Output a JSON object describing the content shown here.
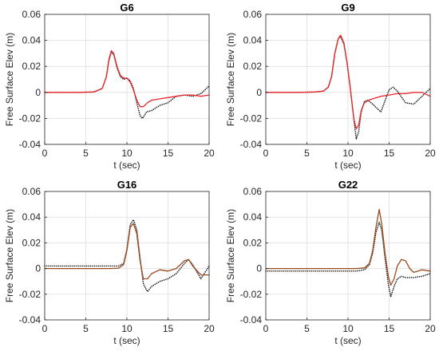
{
  "colors": {
    "model": "#e8262a",
    "model_g16_g22": "#9b4a1e",
    "measured": "#1a1a1a",
    "grid": "#e3e3e3",
    "axis": "#262626"
  },
  "chart_data": [
    {
      "type": "line",
      "title": "G6",
      "xlabel": "t (sec)",
      "ylabel": "Free Surface Elev (m)",
      "xlim": [
        0,
        20
      ],
      "ylim": [
        -0.04,
        0.06
      ],
      "xticks": [
        "0",
        "5",
        "10",
        "15",
        "20"
      ],
      "yticks": [
        "-0.04",
        "-0.02",
        "0",
        "0.02",
        "0.04",
        "0.06"
      ],
      "grid": true,
      "series": [
        {
          "style": "dotted",
          "color": "#1a1a1a",
          "x": [
            0,
            2,
            4,
            6,
            7,
            7.5,
            7.8,
            8.1,
            8.4,
            8.8,
            9.2,
            9.6,
            10,
            10.4,
            10.8,
            11.2,
            11.6,
            11.9,
            12.4,
            13,
            14,
            15,
            16,
            17,
            18,
            19,
            20
          ],
          "y": [
            0,
            0,
            0,
            0.0003,
            0.003,
            0.012,
            0.024,
            0.031,
            0.029,
            0.019,
            0.012,
            0.01,
            0.011,
            0.009,
            0.003,
            -0.008,
            -0.018,
            -0.02,
            -0.015,
            -0.014,
            -0.01,
            -0.008,
            -0.003,
            -0.002,
            -0.003,
            -0.001,
            0.005
          ]
        },
        {
          "style": "solid",
          "color": "#e8262a",
          "x": [
            0,
            2,
            4,
            6,
            7,
            7.5,
            7.8,
            8.1,
            8.4,
            8.8,
            9.2,
            9.6,
            10,
            10.4,
            10.8,
            11.2,
            11.6,
            12,
            12.5,
            13,
            14,
            15,
            16,
            17,
            18,
            19,
            20
          ],
          "y": [
            0,
            0,
            0,
            0.0003,
            0.003,
            0.012,
            0.025,
            0.032,
            0.03,
            0.02,
            0.013,
            0.011,
            0.011,
            0.008,
            0.002,
            -0.006,
            -0.011,
            -0.011,
            -0.008,
            -0.006,
            -0.005,
            -0.004,
            -0.003,
            -0.002,
            -0.002,
            -0.003,
            -0.002
          ]
        }
      ]
    },
    {
      "type": "line",
      "title": "G9",
      "xlabel": "t (sec)",
      "ylabel": "Free Surface Elev (m)",
      "xlim": [
        0,
        20
      ],
      "ylim": [
        -0.04,
        0.06
      ],
      "xticks": [
        "0",
        "5",
        "10",
        "15",
        "20"
      ],
      "yticks": [
        "-0.04",
        "-0.02",
        "0",
        "0.02",
        "0.04",
        "0.06"
      ],
      "grid": true,
      "series": [
        {
          "style": "dotted",
          "color": "#1a1a1a",
          "x": [
            0,
            2,
            4,
            6,
            7,
            7.6,
            8,
            8.4,
            8.8,
            9.1,
            9.5,
            9.9,
            10.3,
            10.7,
            11,
            11.3,
            11.6,
            12,
            12.4,
            13,
            14,
            15,
            15.5,
            16,
            17,
            18,
            19,
            20
          ],
          "y": [
            0,
            0,
            0,
            0.0003,
            0.001,
            0.004,
            0.012,
            0.03,
            0.041,
            0.043,
            0.037,
            0.022,
            0.002,
            -0.02,
            -0.036,
            -0.03,
            -0.015,
            -0.007,
            -0.006,
            -0.009,
            -0.015,
            0.002,
            0.004,
            0.001,
            -0.008,
            -0.009,
            -0.003,
            0.003
          ]
        },
        {
          "style": "solid",
          "color": "#e8262a",
          "x": [
            0,
            2,
            4,
            6,
            7,
            7.6,
            8,
            8.4,
            8.8,
            9.1,
            9.5,
            9.9,
            10.3,
            10.7,
            11,
            11.3,
            11.6,
            12,
            12.5,
            13,
            14,
            15,
            16,
            17,
            18,
            19,
            20
          ],
          "y": [
            0,
            0,
            0,
            0.0003,
            0.001,
            0.004,
            0.012,
            0.03,
            0.041,
            0.044,
            0.038,
            0.022,
            0.002,
            -0.02,
            -0.028,
            -0.025,
            -0.014,
            -0.008,
            -0.006,
            -0.005,
            -0.003,
            -0.002,
            -0.001,
            -0.001,
            0,
            0,
            -0.003
          ]
        }
      ]
    },
    {
      "type": "line",
      "title": "G16",
      "xlabel": "t (sec)",
      "ylabel": "Free Surface Elev (m)",
      "xlim": [
        0,
        20
      ],
      "ylim": [
        -0.04,
        0.06
      ],
      "xticks": [
        "0",
        "5",
        "10",
        "15",
        "20"
      ],
      "yticks": [
        "-0.04",
        "-0.02",
        "0",
        "0.02",
        "0.04",
        "0.06"
      ],
      "grid": true,
      "series": [
        {
          "style": "dotted",
          "color": "#1a1a1a",
          "x": [
            0,
            2,
            4,
            6,
            8,
            9,
            9.6,
            10,
            10.4,
            10.8,
            11.2,
            11.6,
            12,
            12.5,
            13,
            14,
            15,
            16,
            17,
            17.5,
            18,
            19,
            20
          ],
          "y": [
            0.002,
            0.002,
            0.002,
            0.002,
            0.002,
            0.002,
            0.004,
            0.015,
            0.034,
            0.038,
            0.03,
            0.008,
            -0.012,
            -0.018,
            -0.014,
            -0.01,
            -0.008,
            -0.004,
            0.004,
            0.007,
            0.003,
            -0.008,
            0.002
          ]
        },
        {
          "style": "solid",
          "color": "#9b4a1e",
          "x": [
            0,
            2,
            4,
            6,
            8,
            9,
            9.6,
            10,
            10.4,
            10.8,
            11.2,
            11.6,
            12,
            12.5,
            13,
            14,
            15,
            16,
            17,
            17.5,
            18,
            19,
            20
          ],
          "y": [
            0,
            0,
            0,
            0,
            0,
            0.0003,
            0.003,
            0.014,
            0.032,
            0.035,
            0.027,
            0.006,
            -0.008,
            -0.008,
            -0.004,
            -0.001,
            -0.002,
            0,
            0.006,
            0.007,
            0.002,
            -0.005,
            -0.005
          ]
        }
      ]
    },
    {
      "type": "line",
      "title": "G22",
      "xlabel": "t (sec)",
      "ylabel": "Free Surface Elev (m)",
      "xlim": [
        0,
        20
      ],
      "ylim": [
        -0.04,
        0.06
      ],
      "xticks": [
        "0",
        "5",
        "10",
        "15",
        "20"
      ],
      "yticks": [
        "-0.04",
        "-0.02",
        "0",
        "0.02",
        "0.04",
        "0.06"
      ],
      "grid": true,
      "series": [
        {
          "style": "dotted",
          "color": "#1a1a1a",
          "x": [
            0,
            2,
            4,
            6,
            8,
            10,
            11,
            12,
            12.6,
            13,
            13.4,
            13.8,
            14.1,
            14.5,
            14.9,
            15.2,
            15.6,
            16,
            16.5,
            17,
            18,
            19,
            20
          ],
          "y": [
            -0.002,
            -0.002,
            -0.002,
            -0.002,
            -0.002,
            -0.002,
            -0.002,
            -0.001,
            0.003,
            0.012,
            0.028,
            0.036,
            0.03,
            0.008,
            -0.012,
            -0.022,
            -0.014,
            -0.008,
            -0.006,
            -0.007,
            -0.007,
            -0.006,
            -0.004
          ]
        },
        {
          "style": "solid",
          "color": "#9b4a1e",
          "x": [
            0,
            2,
            4,
            6,
            8,
            10,
            11,
            12,
            12.6,
            13,
            13.4,
            13.8,
            14.1,
            14.5,
            14.9,
            15.2,
            15.6,
            16,
            16.5,
            17,
            17.5,
            18,
            19,
            20
          ],
          "y": [
            0,
            0,
            0,
            0,
            0,
            0,
            0,
            0.0005,
            0.004,
            0.014,
            0.032,
            0.046,
            0.035,
            0.012,
            -0.006,
            -0.013,
            -0.008,
            0.002,
            0.007,
            0.006,
            0.0,
            -0.003,
            -0.001,
            -0.002
          ]
        }
      ]
    }
  ]
}
